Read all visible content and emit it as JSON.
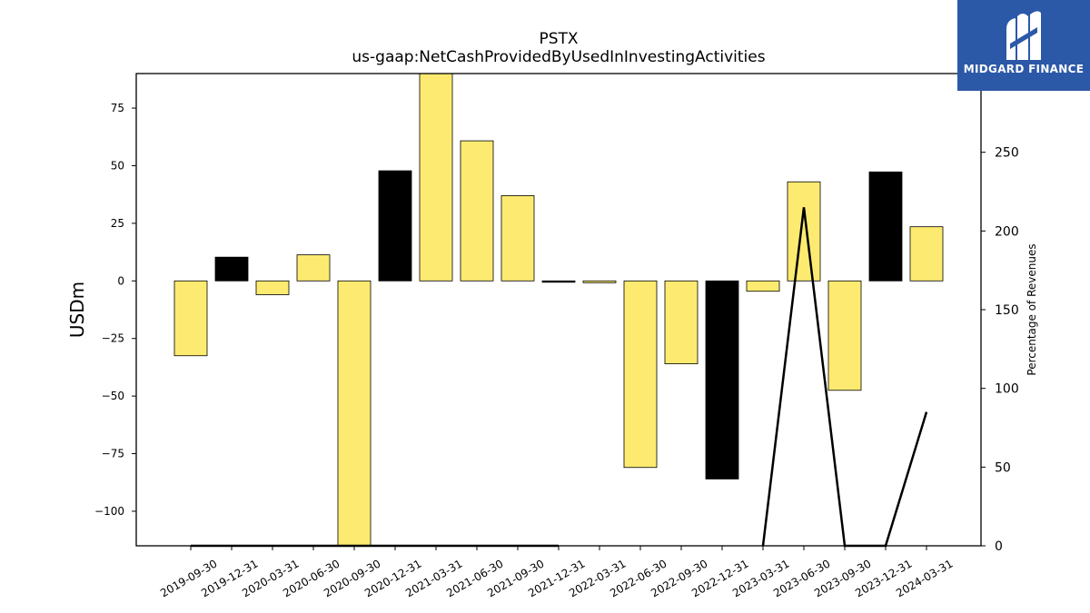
{
  "chart_data": {
    "type": "bar",
    "title": "PSTX",
    "subtitle": "us-gaap:NetCashProvidedByUsedInInvestingActivities",
    "ylabel": "USDm",
    "y2label": "Percentage of Revenues",
    "categories": [
      "2019-09-30",
      "2019-12-31",
      "2020-03-31",
      "2020-06-30",
      "2020-09-30",
      "2020-12-31",
      "2021-03-31",
      "2021-06-30",
      "2021-09-30",
      "2021-12-31",
      "2022-03-31",
      "2022-06-30",
      "2022-09-30",
      "2022-12-31",
      "2023-03-31",
      "2023-06-30",
      "2023-09-30",
      "2023-12-31",
      "2024-03-31"
    ],
    "values": [
      -32.5,
      10.3,
      -6.0,
      11.3,
      -115,
      47.8,
      90,
      60.8,
      37.0,
      -0.6,
      -0.8,
      -81.0,
      -36.0,
      -86.0,
      -4.5,
      43.0,
      -47.5,
      47.3,
      23.5
    ],
    "bar_colors": [
      "#fdeb71",
      "#000000",
      "#fdeb71",
      "#fdeb71",
      "#fdeb71",
      "#000000",
      "#fdeb71",
      "#fdeb71",
      "#fdeb71",
      "#000000",
      "#fdeb71",
      "#fdeb71",
      "#fdeb71",
      "#000000",
      "#fdeb71",
      "#fdeb71",
      "#fdeb71",
      "#000000",
      "#fdeb71"
    ],
    "line_series": {
      "name": "",
      "values": [
        0,
        0,
        0,
        0,
        0,
        0,
        0,
        0,
        0,
        0,
        null,
        null,
        null,
        null,
        0,
        215,
        0,
        0,
        85
      ]
    },
    "ylim": [
      -115,
      90
    ],
    "y2lim": [
      0,
      300
    ],
    "yticks": [
      -100,
      -75,
      -50,
      -25,
      0,
      25,
      50,
      75
    ],
    "y2ticks": [
      0,
      50,
      100,
      150,
      200,
      250
    ],
    "grid": false,
    "legend": "none"
  },
  "logo": {
    "text": "MIDGARD FINANCE",
    "icon": "midgard-logo-icon",
    "background": "#2c58a8"
  }
}
